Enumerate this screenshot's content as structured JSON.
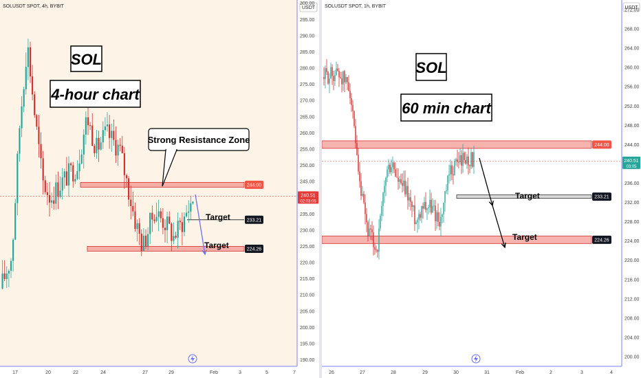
{
  "chart_data": [
    {
      "type": "candlestick",
      "header": "SOLUSDT SPOT, 4h, BYBIT",
      "currency": "USDT",
      "ylim": [
        188,
        301
      ],
      "y_ticks": [
        190,
        195,
        200,
        205,
        210,
        215,
        220,
        225,
        230,
        235,
        240,
        245,
        250,
        255,
        260,
        265,
        270,
        275,
        280,
        285,
        290,
        295,
        300
      ],
      "x_ticks": [
        "17",
        "20",
        "22",
        "24",
        "27",
        "29",
        "Feb",
        "3",
        "5",
        "7"
      ],
      "annotations": {
        "symbol": "SOL",
        "timeframe": "4-hour chart",
        "callout": "Strong Resistance Zone",
        "target1": "Target",
        "target2": "Target"
      },
      "levels": [
        {
          "value": 244.0,
          "label": "244.00",
          "kind": "resistance"
        },
        {
          "value": 233.21,
          "label": "233.21",
          "kind": "target"
        },
        {
          "value": 224.26,
          "label": "224.26",
          "kind": "support"
        }
      ],
      "price_label": "240.51",
      "countdown": "02:03:05",
      "current_price": 240.51,
      "background": "#fdf4e7",
      "up_color": "#26a69a",
      "down_color": "#d32f2f",
      "zone_color": "#f28b82",
      "arrow_color": "#6b6ef5"
    },
    {
      "type": "candlestick",
      "header": "SOLUSDT SPOT, 1h, BYBIT",
      "currency": "USDT",
      "ylim": [
        198,
        274
      ],
      "y_ticks": [
        200,
        204,
        208,
        212,
        216,
        220,
        224,
        228,
        232,
        236,
        240,
        244,
        248,
        252,
        256,
        260,
        264,
        268,
        272
      ],
      "x_ticks": [
        "26",
        "27",
        "28",
        "29",
        "30",
        "31",
        "Feb",
        "2",
        "3",
        "4"
      ],
      "annotations": {
        "symbol": "SOL",
        "timeframe": "60 min chart",
        "target1": "Target",
        "target2": "Target"
      },
      "levels": [
        {
          "value": 244.0,
          "label": "244.00",
          "kind": "resistance"
        },
        {
          "value": 233.21,
          "label": "233.21",
          "kind": "target"
        },
        {
          "value": 224.26,
          "label": "224.26",
          "kind": "support"
        }
      ],
      "price_label": "240.51",
      "countdown": "03:05",
      "current_price": 240.51,
      "background": "#ffffff",
      "up_color": "#26a69a",
      "down_color": "#d32f2f",
      "zone_color": "#f28b82",
      "arrow_color": "#000000"
    }
  ]
}
